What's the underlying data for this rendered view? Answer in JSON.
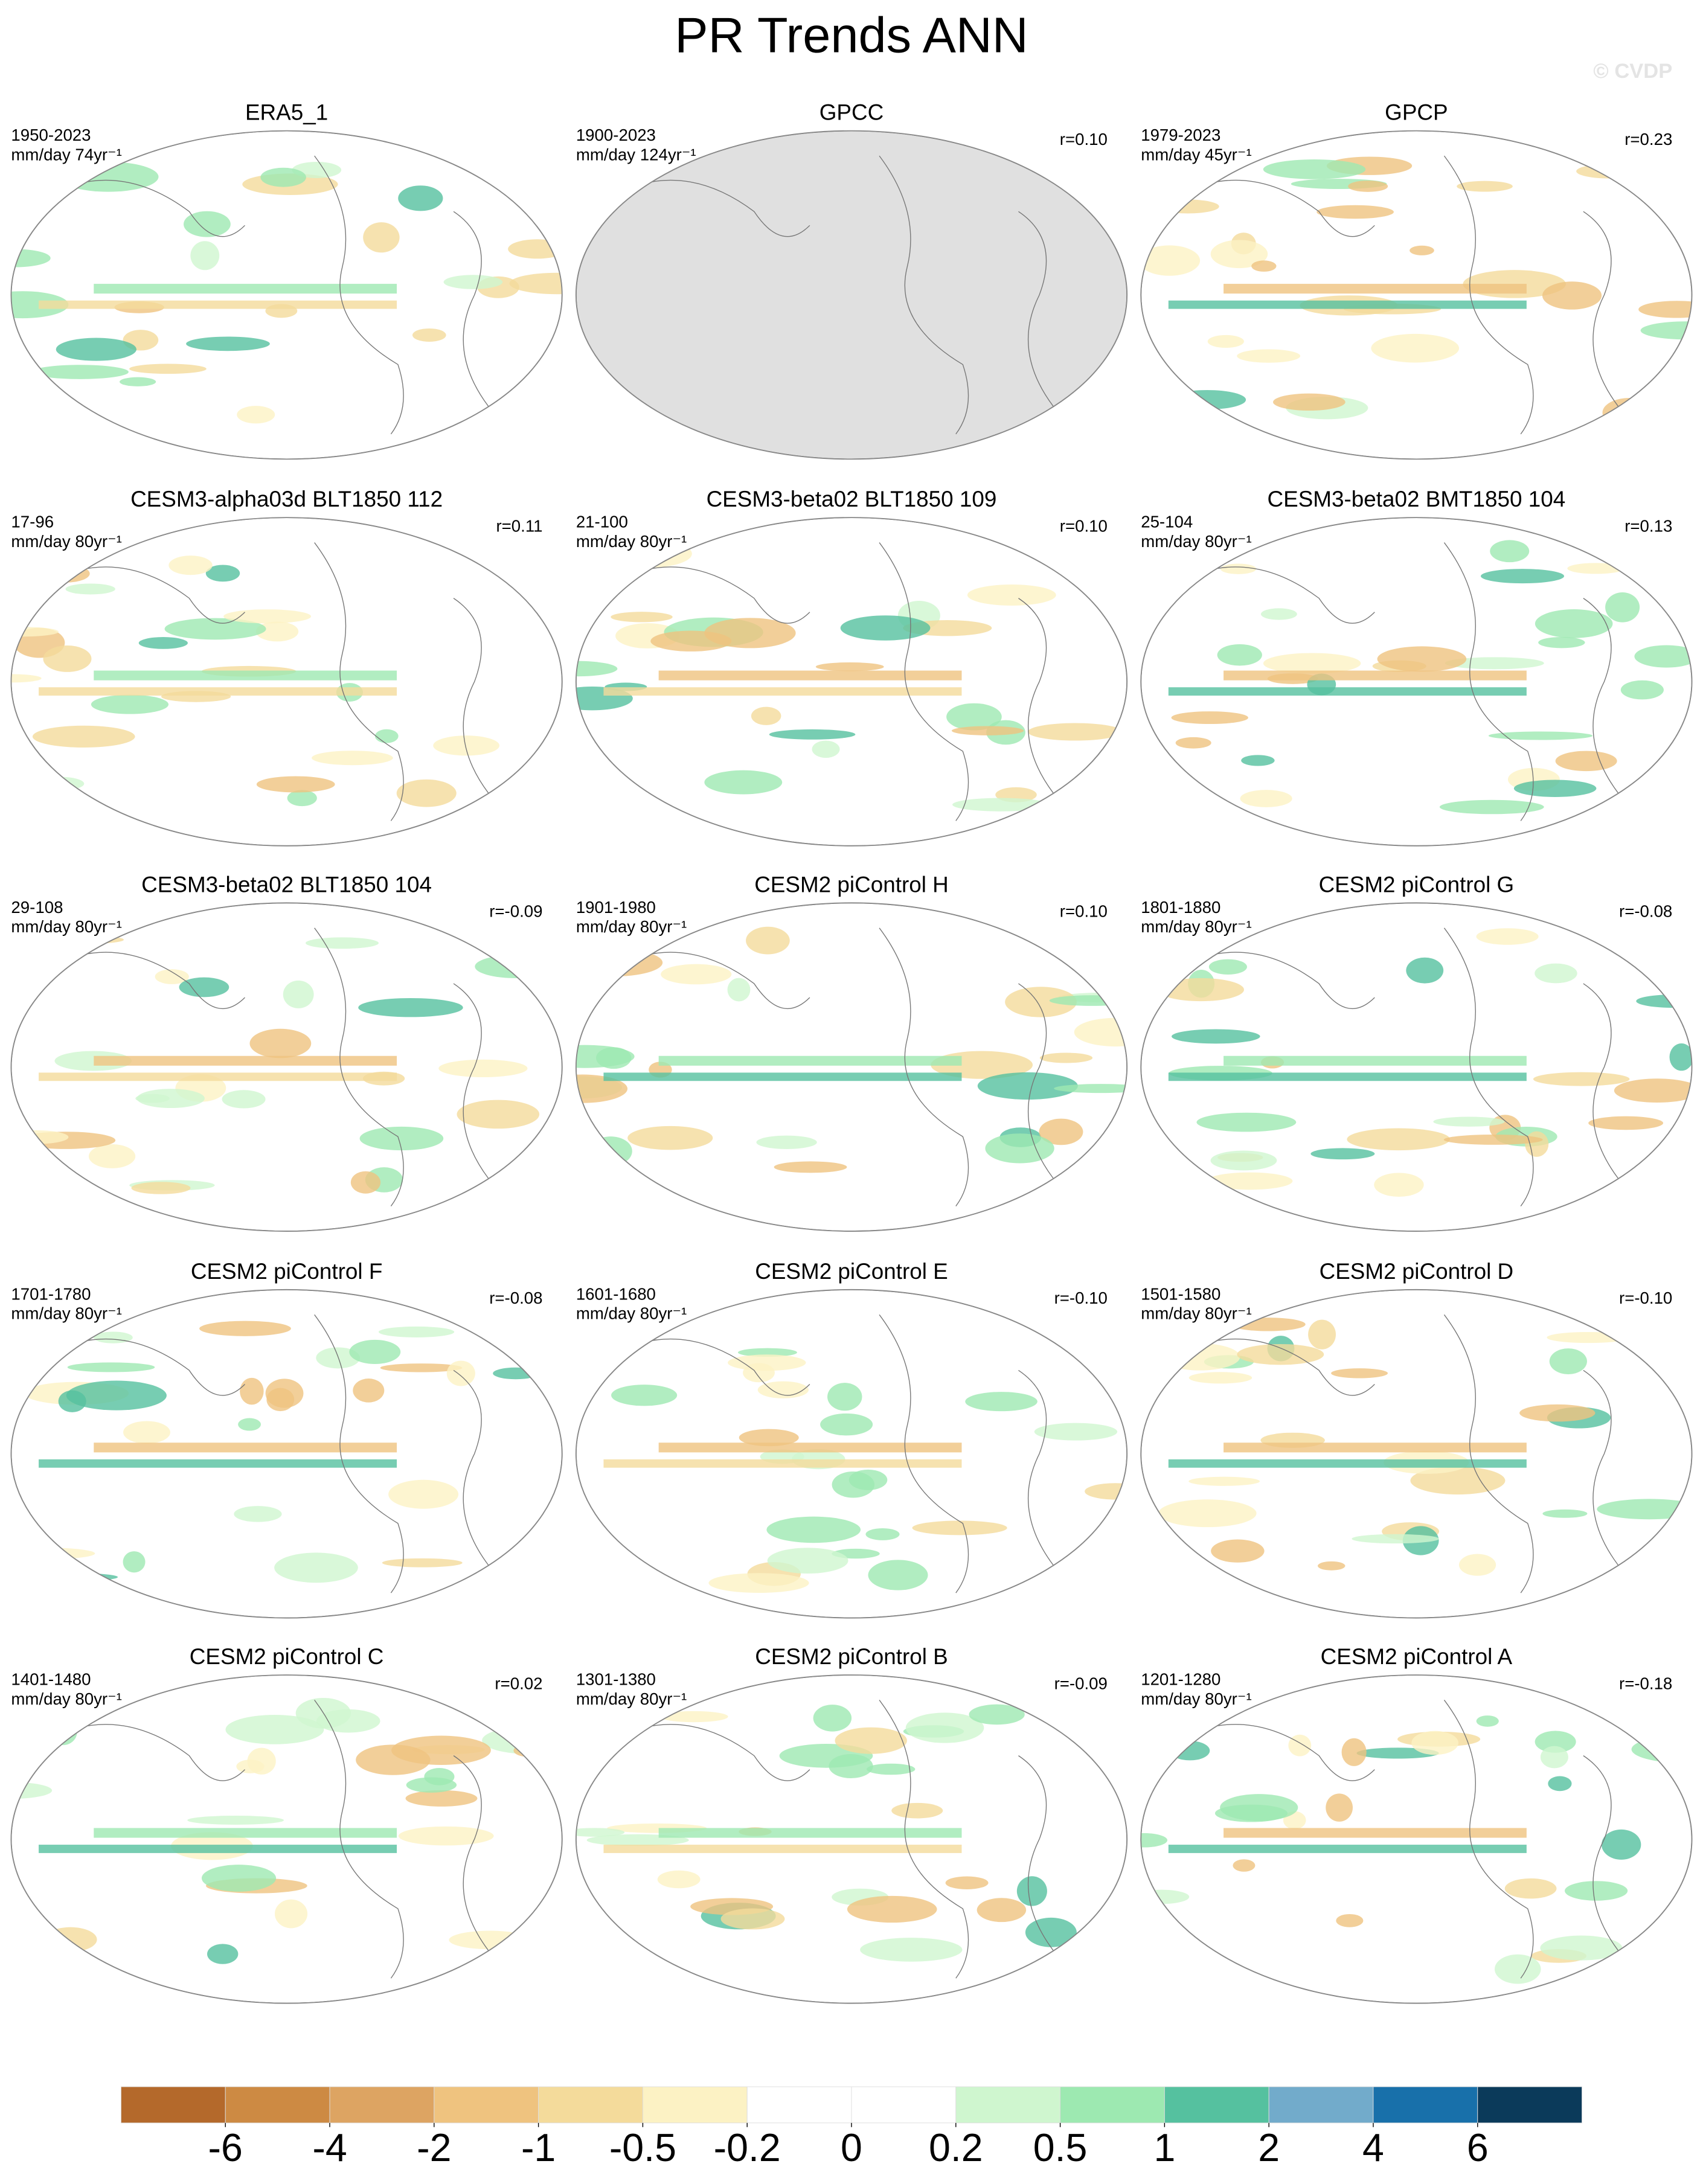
{
  "title": "PR Trends ANN",
  "watermark": "© CVDP",
  "panels": [
    {
      "title": "ERA5_1",
      "period": "1950-2023",
      "units": "mm/day 74yr⁻¹",
      "r": null
    },
    {
      "title": "GPCC",
      "period": "1900-2023",
      "units": "mm/day 124yr⁻¹",
      "r": "r=0.10"
    },
    {
      "title": "GPCP",
      "period": "1979-2023",
      "units": "mm/day 45yr⁻¹",
      "r": "r=0.23"
    },
    {
      "title": "CESM3-alpha03d BLT1850 112",
      "period": "17-96",
      "units": "mm/day 80yr⁻¹",
      "r": "r=0.11"
    },
    {
      "title": "CESM3-beta02 BLT1850 109",
      "period": "21-100",
      "units": "mm/day 80yr⁻¹",
      "r": "r=0.10"
    },
    {
      "title": "CESM3-beta02 BMT1850 104",
      "period": "25-104",
      "units": "mm/day 80yr⁻¹",
      "r": "r=0.13"
    },
    {
      "title": "CESM3-beta02 BLT1850 104",
      "period": "29-108",
      "units": "mm/day 80yr⁻¹",
      "r": "r=-0.09"
    },
    {
      "title": "CESM2 piControl H",
      "period": "1901-1980",
      "units": "mm/day 80yr⁻¹",
      "r": "r=0.10"
    },
    {
      "title": "CESM2 piControl G",
      "period": "1801-1880",
      "units": "mm/day 80yr⁻¹",
      "r": "r=-0.08"
    },
    {
      "title": "CESM2 piControl F",
      "period": "1701-1780",
      "units": "mm/day 80yr⁻¹",
      "r": "r=-0.08"
    },
    {
      "title": "CESM2 piControl E",
      "period": "1601-1680",
      "units": "mm/day 80yr⁻¹",
      "r": "r=-0.10"
    },
    {
      "title": "CESM2 piControl D",
      "period": "1501-1580",
      "units": "mm/day 80yr⁻¹",
      "r": "r=-0.10"
    },
    {
      "title": "CESM2 piControl C",
      "period": "1401-1480",
      "units": "mm/day 80yr⁻¹",
      "r": "r=0.02"
    },
    {
      "title": "CESM2 piControl B",
      "period": "1301-1380",
      "units": "mm/day 80yr⁻¹",
      "r": "r=-0.09"
    },
    {
      "title": "CESM2 piControl A",
      "period": "1201-1280",
      "units": "mm/day 80yr⁻¹",
      "r": "r=-0.18"
    }
  ],
  "colorbar": {
    "levels": [
      -6,
      -4,
      -2,
      -1,
      -0.5,
      -0.2,
      0,
      0.2,
      0.5,
      1,
      2,
      4,
      6
    ],
    "colors": [
      "#b4692b",
      "#cd8a43",
      "#dda462",
      "#efc37f",
      "#f4db9b",
      "#fcf2c4",
      "#ffffff",
      "#ffffff",
      "#cff6cf",
      "#9de9b1",
      "#55c19f",
      "#72abcb",
      "#1870aa",
      "#0b3a5a"
    ]
  }
}
